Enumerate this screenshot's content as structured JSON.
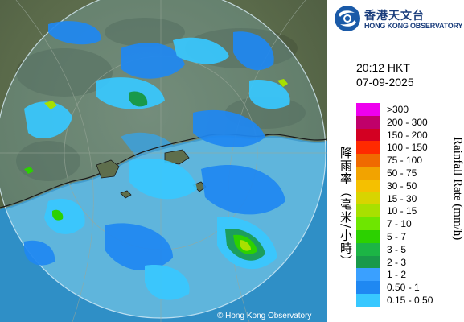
{
  "header": {
    "logo_cn": "香港天文台",
    "logo_en": "HONG KONG OBSERVATORY"
  },
  "timestamp": {
    "time": "20:12 HKT",
    "date": "07-09-2025"
  },
  "legend": {
    "title_cn": "降雨率（毫米/小時）",
    "title_en": "Rainfall Rate (mm/h)",
    "items": [
      {
        "range": ">300",
        "color": "#ee00ee"
      },
      {
        "range": "200 - 300",
        "color": "#c0006a"
      },
      {
        "range": "150 - 200",
        "color": "#d30022"
      },
      {
        "range": "100 - 150",
        "color": "#ff2a00"
      },
      {
        "range": "75 - 100",
        "color": "#f06a00"
      },
      {
        "range": "50 - 75",
        "color": "#f2a300"
      },
      {
        "range": "30 - 50",
        "color": "#f5c000"
      },
      {
        "range": "15 - 30",
        "color": "#d8d400"
      },
      {
        "range": "10 - 15",
        "color": "#a8e000"
      },
      {
        "range": "7 - 10",
        "color": "#6ee600"
      },
      {
        "range": "5 - 7",
        "color": "#2cd100"
      },
      {
        "range": "3 - 5",
        "color": "#1cb545"
      },
      {
        "range": "2 - 3",
        "color": "#19994a"
      },
      {
        "range": "1 - 2",
        "color": "#3aa0ff"
      },
      {
        "range": "0.50 - 1",
        "color": "#1f88f2"
      },
      {
        "range": "0.15 - 0.50",
        "color": "#38c8ff"
      }
    ]
  },
  "copyright": "© Hong Kong Observatory"
}
